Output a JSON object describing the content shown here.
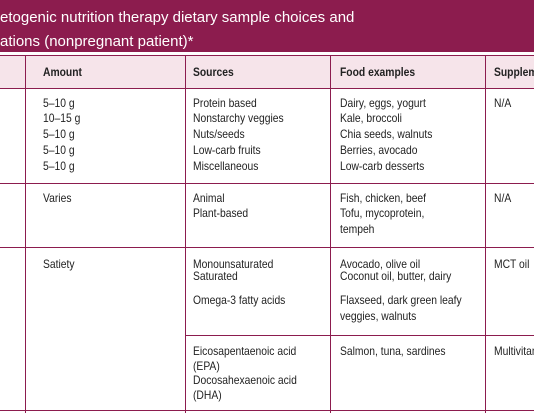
{
  "header": {
    "title_lines": [
      "etogenic nutrition therapy dietary sample choices and",
      "ations (nonpregnant patient)*"
    ]
  },
  "table": {
    "columns": [
      "Amount",
      "Sources",
      "Food examples",
      "Supplem"
    ],
    "rows": [
      {
        "amount": [
          "5–10 g",
          "10–15 g",
          "5–10 g",
          "5–10 g",
          "5–10 g"
        ],
        "sources": [
          "Protein based",
          "Nonstarchy veggies",
          "Nuts/seeds",
          "Low-carb fruits",
          "Miscellaneous"
        ],
        "foods": [
          "Dairy, eggs, yogurt",
          "Kale, broccoli",
          "Chia seeds, walnuts",
          "Berries, avocado",
          "Low-carb desserts"
        ],
        "supplements": [
          "N/A"
        ]
      },
      {
        "amount": [
          "Varies"
        ],
        "sources": [
          "Animal",
          "Plant-based"
        ],
        "foods": [
          "Fish, chicken, beef",
          "Tofu, mycoprotein,",
          "tempeh"
        ],
        "supplements": [
          "N/A"
        ]
      },
      {
        "amount": [
          "Satiety"
        ],
        "sources": [
          "Monounsaturated",
          "Saturated",
          "Omega-3 fatty acids"
        ],
        "foods": [
          "Avocado, olive oil",
          "Coconut oil, butter, dairy",
          "Flaxseed, dark green leafy",
          "veggies, walnuts"
        ],
        "supplements": [
          "MCT oil"
        ]
      },
      {
        "sources": [
          "Eicosapentaenoic acid",
          "(EPA)",
          "Docosahexaenoic acid",
          "(DHA)"
        ],
        "foods": [
          "Salmon, tuna, sardines"
        ],
        "supplements": [
          "Multivitam"
        ]
      }
    ]
  }
}
